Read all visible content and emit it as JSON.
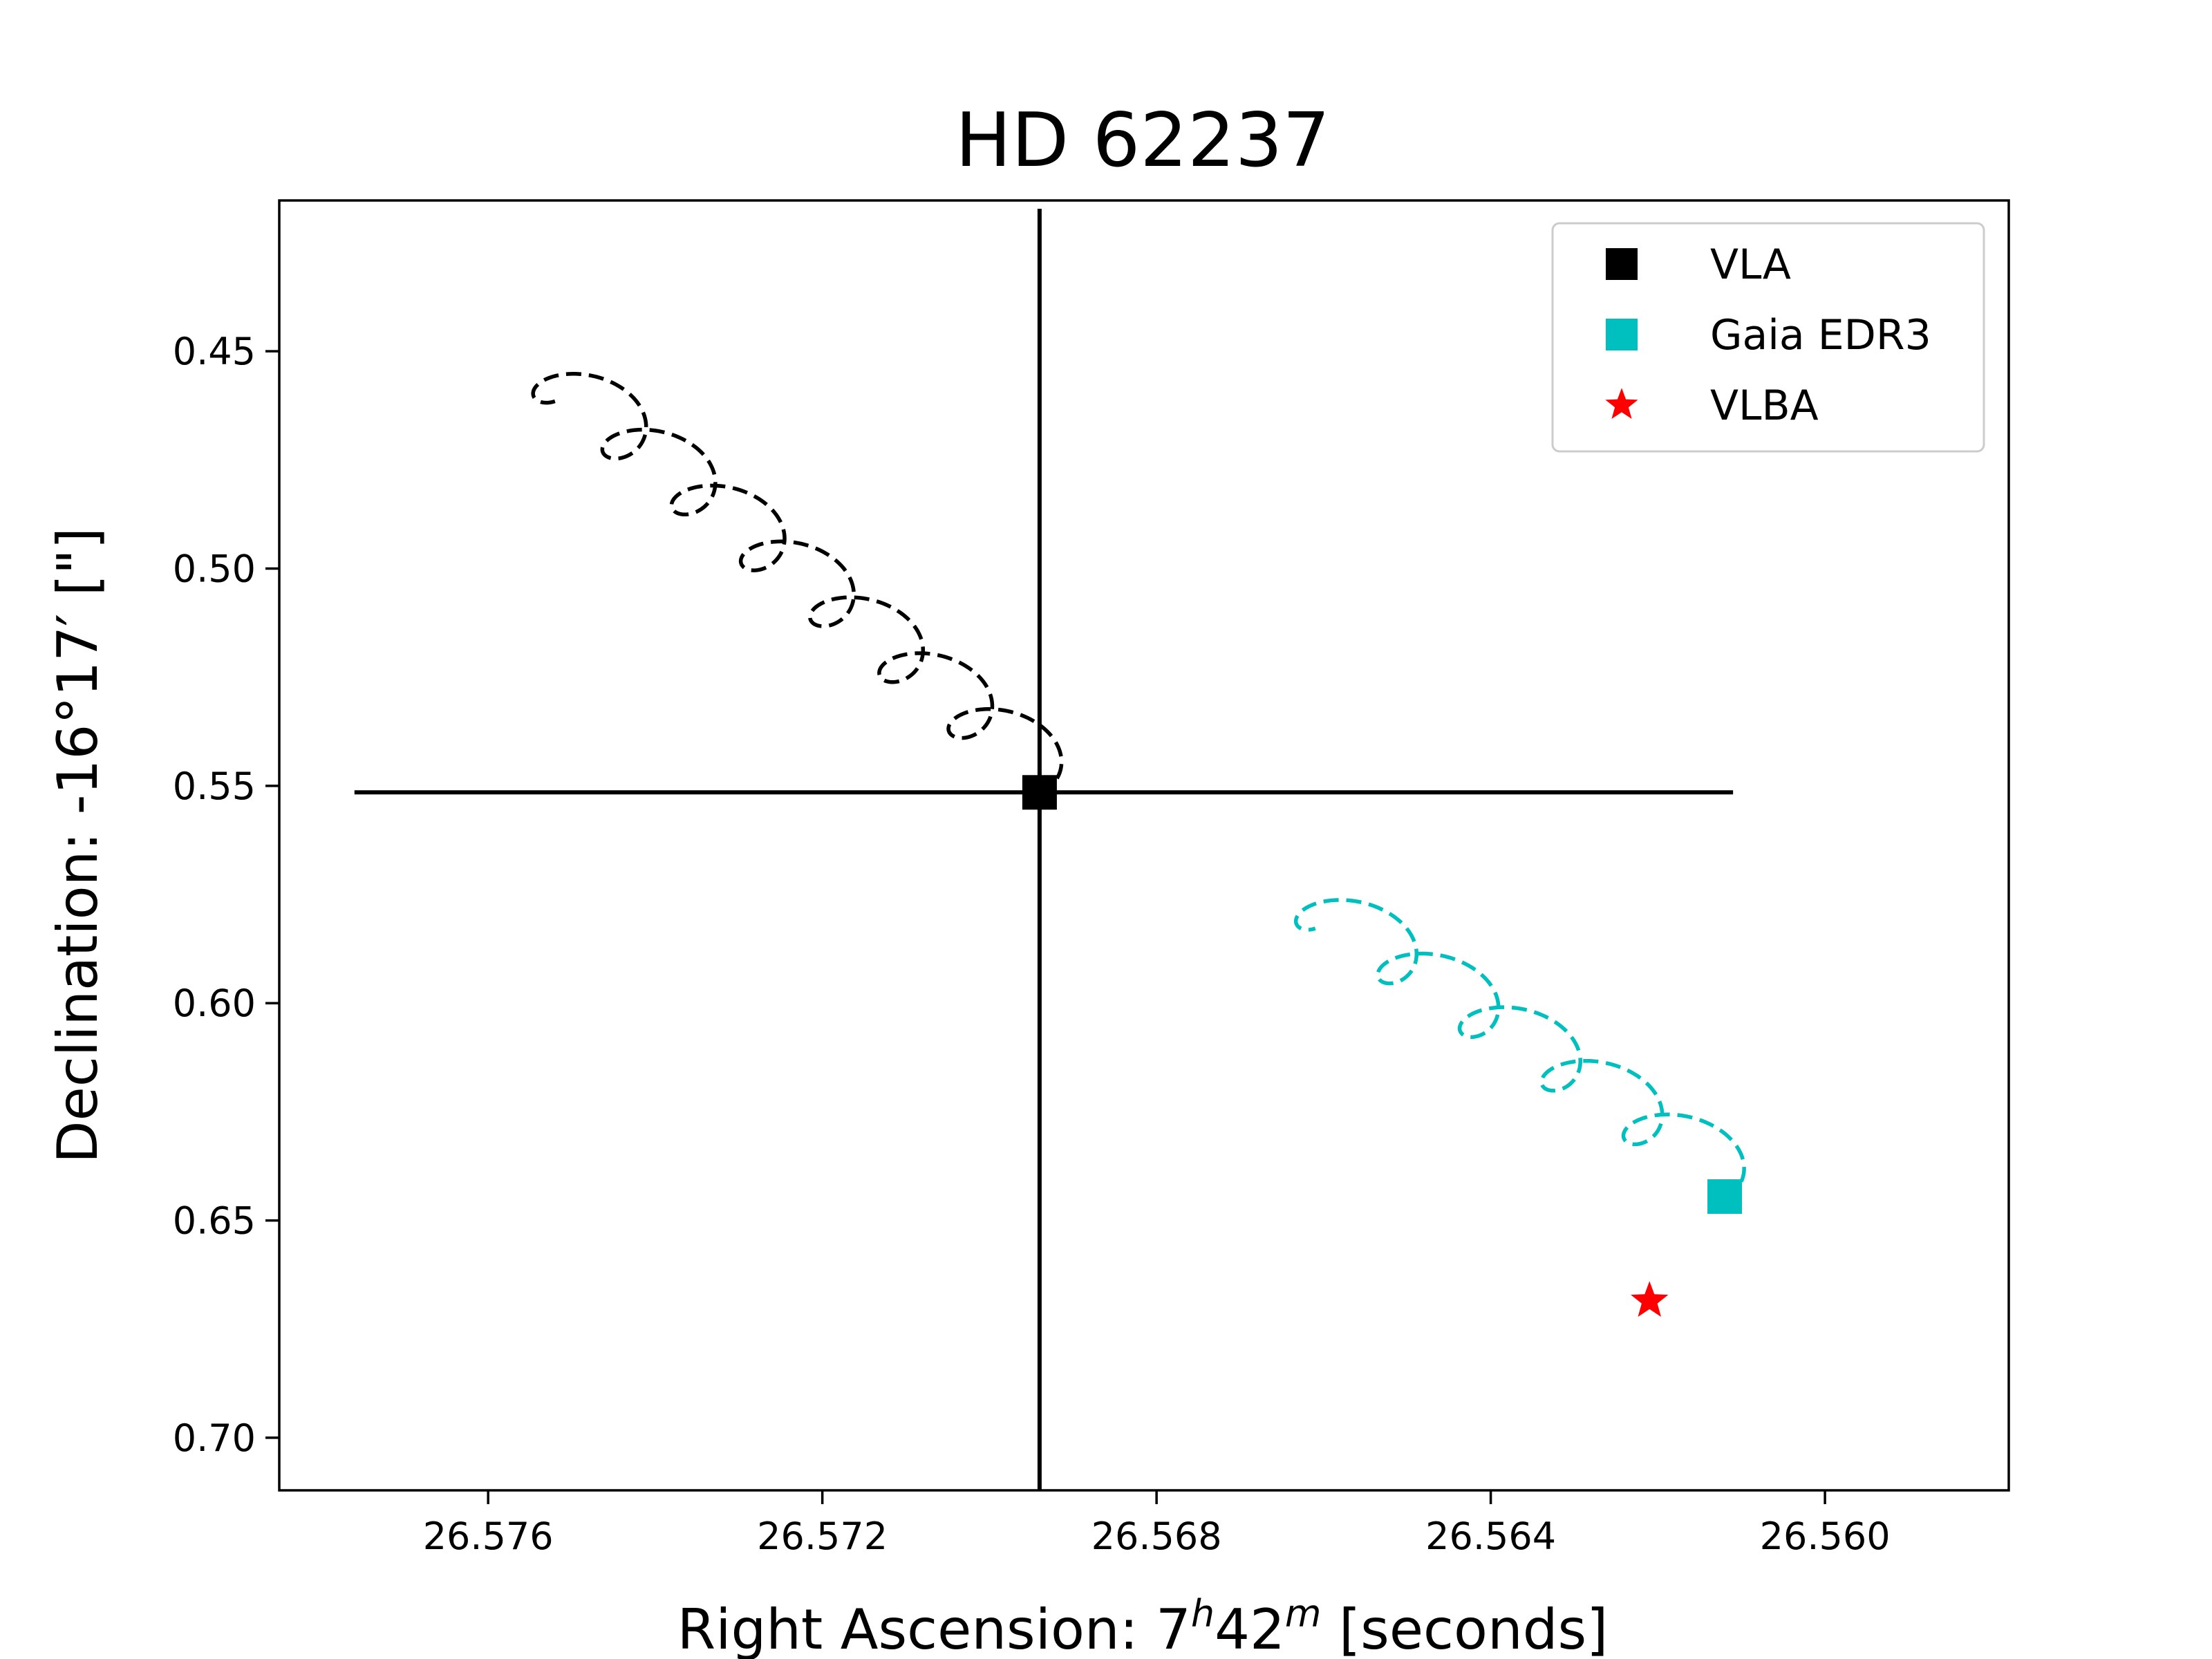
{
  "chart_data": {
    "type": "scatter",
    "title": "HD 62237",
    "xlabel": {
      "prefix": "Right Ascension: 7",
      "h": "h",
      "mid": "42",
      "m": "m",
      "suffix": " [seconds]"
    },
    "ylabel": "Declination: -16°17′ [\"]",
    "x_axis": {
      "range": [
        26.5785,
        26.5578
      ],
      "inverted": true,
      "ticks": [
        26.576,
        26.572,
        26.568,
        26.564,
        26.56
      ],
      "tick_labels": [
        "26.576",
        "26.572",
        "26.568",
        "26.564",
        "26.560"
      ]
    },
    "y_axis": {
      "range": [
        0.4153,
        0.7121
      ],
      "inverted": true,
      "ticks": [
        0.45,
        0.5,
        0.55,
        0.6,
        0.65,
        0.7
      ],
      "tick_labels": [
        "0.45",
        "0.50",
        "0.55",
        "0.60",
        "0.65",
        "0.70"
      ]
    },
    "grid": false,
    "legend": {
      "position": "top-right",
      "entries": [
        {
          "label": "VLA",
          "marker": "square",
          "color": "#000000"
        },
        {
          "label": "Gaia EDR3",
          "marker": "square",
          "color": "#00bfbf"
        },
        {
          "label": "VLBA",
          "marker": "star",
          "color": "#ff0000"
        }
      ]
    },
    "series": [
      {
        "name": "VLA",
        "marker": "square",
        "color": "#000000",
        "points": [
          {
            "x": 26.5694,
            "y": 0.5515
          }
        ],
        "error_bars": {
          "x": [
            26.5776,
            26.5611
          ],
          "y": [
            0.4172,
            0.7121
          ]
        }
      },
      {
        "name": "Gaia EDR3",
        "marker": "square",
        "color": "#00bfbf",
        "points": [
          {
            "x": 26.5612,
            "y": 0.6445
          }
        ]
      },
      {
        "name": "VLBA",
        "marker": "star",
        "color": "#ff0000",
        "points": [
          {
            "x": 26.5621,
            "y": 0.6685
          }
        ]
      }
    ],
    "tracks": [
      {
        "color": "#000000",
        "style": "dashed",
        "start": {
          "x": 26.5694,
          "y": 0.5515
        },
        "end": {
          "x": 26.5752,
          "y": 0.4615
        },
        "loops": 7,
        "loop_x_amplitude": 0.00045,
        "loop_y_amplitude": 0.0062
      },
      {
        "color": "#00bfbf",
        "style": "dashed",
        "start": {
          "x": 26.5612,
          "y": 0.6445
        },
        "end": {
          "x": 26.5661,
          "y": 0.5828
        },
        "loops": 5,
        "loop_x_amplitude": 0.00045,
        "loop_y_amplitude": 0.0062
      }
    ]
  }
}
